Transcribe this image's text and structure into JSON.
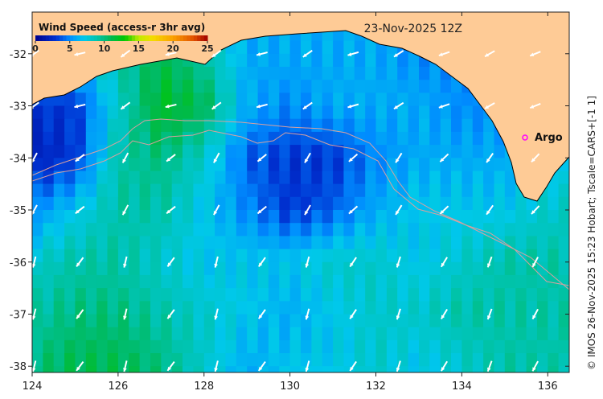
{
  "map": {
    "date_label": "23-Nov-2025 12Z",
    "colorbar": {
      "title": "Wind Speed (access-r 3hr avg)",
      "ticks": [
        "0",
        "5",
        "10",
        "15",
        "20",
        "25"
      ],
      "range": [
        0,
        25
      ]
    },
    "credit": "© IMOS 26-Nov-2025 15:23 Hobart; Tscale=CARS+[-1 1]",
    "x_ticks": [
      "124",
      "126",
      "128",
      "130",
      "132",
      "134",
      "136"
    ],
    "y_ticks": [
      "-32",
      "-33",
      "-34",
      "-35",
      "-36",
      "-37",
      "-38"
    ],
    "lon_range": [
      124,
      136.5
    ],
    "lat_range": [
      -38.12,
      -31.2
    ],
    "marker": {
      "label": "Argo",
      "lon": 135.5,
      "lat": -33.6,
      "color": "#ff00ff"
    },
    "colors": {
      "land": "#fecb96",
      "arrow": "#ffffff",
      "contour": "#d8a0a0"
    },
    "wind_speed_grid": {
      "lons": [
        124,
        125,
        126,
        127,
        128,
        129,
        130,
        131,
        132,
        133,
        134,
        135,
        136
      ],
      "lats": [
        -32,
        -33,
        -34,
        -35,
        -36,
        -37,
        -38
      ],
      "values": [
        [
          7,
          7,
          9,
          11,
          9,
          6,
          6,
          6,
          6,
          5,
          5,
          5,
          5
        ],
        [
          3,
          3,
          8,
          12,
          11,
          6,
          5,
          6,
          6,
          6,
          5,
          5,
          6
        ],
        [
          2,
          3,
          9,
          10,
          8,
          4,
          3,
          3,
          5,
          6,
          6,
          6,
          7
        ],
        [
          5,
          7,
          9,
          9,
          7,
          5,
          3,
          4,
          6,
          7,
          7,
          7,
          8
        ],
        [
          8,
          9,
          9,
          8,
          7,
          7,
          7,
          8,
          8,
          7,
          8,
          9,
          9
        ],
        [
          9,
          10,
          10,
          9,
          8,
          7,
          6,
          7,
          8,
          8,
          9,
          9,
          9
        ],
        [
          10,
          11,
          11,
          10,
          8,
          6,
          7,
          7,
          8,
          7,
          8,
          9,
          9
        ]
      ]
    }
  }
}
